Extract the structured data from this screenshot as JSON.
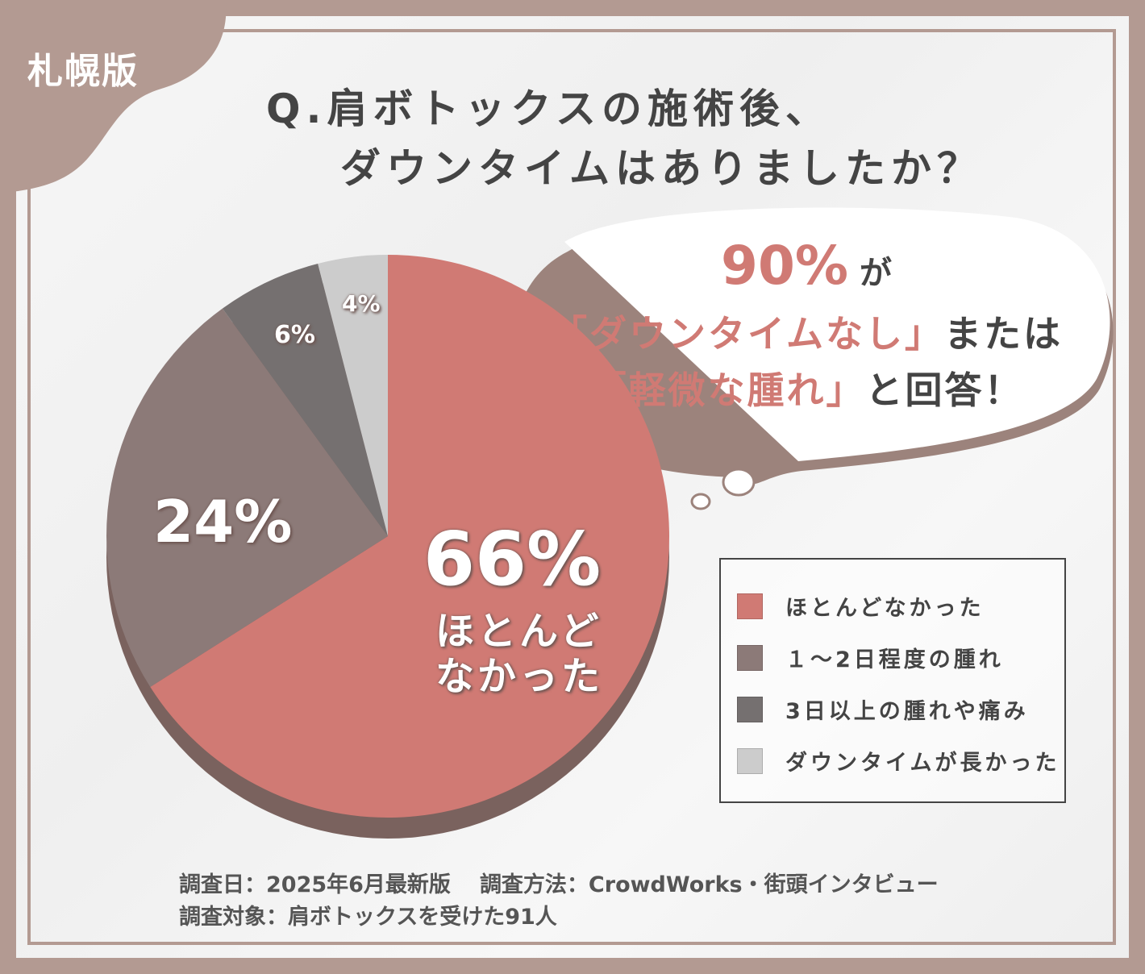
{
  "badge": "札幌版",
  "title": {
    "line1": "Q.肩ボトックスの施術後、",
    "line2": "ダウンタイムはありましたか？"
  },
  "bubble": {
    "percent": "90%",
    "ga": "が",
    "quote1": "「ダウンタイムなし」",
    "matawa": "または",
    "quote2": "「軽微な腫れ」",
    "answer": "と回答！"
  },
  "colors": {
    "frame": "#b39a92",
    "accent": "#d07a74"
  },
  "chart_data": {
    "type": "pie",
    "start": "top",
    "direction": "clockwise",
    "style": "3d-tilted",
    "categories": [
      "ほとんどなかった",
      "1～2日程度の腫れ",
      "3日以上の腫れや痛み",
      "ダウンタイムが長かった"
    ],
    "values": [
      66,
      24,
      6,
      4
    ],
    "unit": "%",
    "colors": [
      "#d07a74",
      "#8c7a78",
      "#757070",
      "#cccccc"
    ],
    "data_labels": [
      "66%",
      "24%",
      "6%",
      "4%"
    ],
    "main_label_sub": [
      "ほとんど",
      "なかった"
    ],
    "legend_position": "right",
    "legend": [
      "ほとんどなかった",
      "１～2日程度の腫れ",
      "3日以上の腫れや痛み",
      "ダウンタイムが長かった"
    ]
  },
  "footer": {
    "date": "調査日：2025年6月最新版",
    "method": "調査方法：CrowdWorks・街頭インタビュー",
    "target": "調査対象：肩ボトックスを受けた91人"
  }
}
